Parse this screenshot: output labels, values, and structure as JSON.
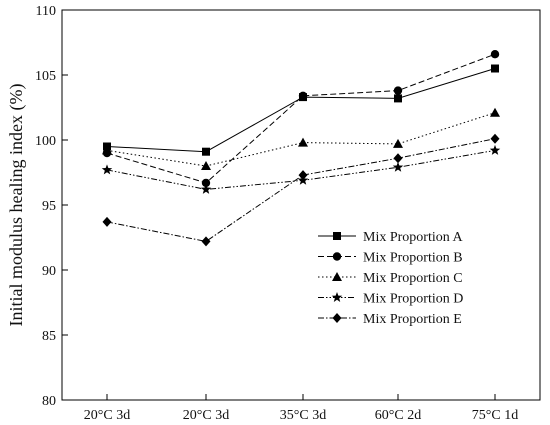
{
  "chart_data": {
    "type": "line",
    "title": "",
    "xlabel": "",
    "ylabel": "Initial modulus healing index  (%)",
    "categories": [
      "20°C 3d",
      "20°C 3d",
      "35°C 3d",
      "60°C 2d",
      "75°C 1d"
    ],
    "ylim": [
      80,
      110
    ],
    "yticks": [
      80,
      85,
      90,
      95,
      100,
      105,
      110
    ],
    "grid": false,
    "legend_position": "lower-right",
    "series": [
      {
        "name": "Mix Proportion A",
        "values": [
          99.5,
          99.1,
          103.3,
          103.2,
          105.5
        ],
        "marker": "square",
        "dash": "solid"
      },
      {
        "name": "Mix Proportion B",
        "values": [
          99.0,
          96.7,
          103.4,
          103.8,
          106.6
        ],
        "marker": "circle",
        "dash": "dash"
      },
      {
        "name": "Mix Proportion C",
        "values": [
          99.2,
          98.0,
          99.8,
          99.7,
          102.1
        ],
        "marker": "triangle",
        "dash": "dot"
      },
      {
        "name": "Mix Proportion D",
        "values": [
          97.7,
          96.2,
          96.9,
          97.9,
          99.2
        ],
        "marker": "star",
        "dash": "dashdotdot"
      },
      {
        "name": "Mix Proportion E",
        "values": [
          93.7,
          92.2,
          97.3,
          98.6,
          100.1
        ],
        "marker": "diamond",
        "dash": "dashdot"
      }
    ]
  }
}
